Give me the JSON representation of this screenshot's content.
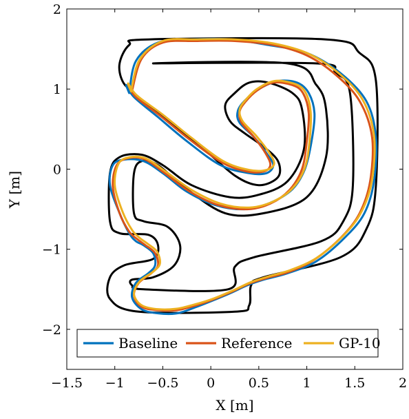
{
  "chart_data": {
    "type": "line",
    "title": "",
    "xlabel": "X [m]",
    "ylabel": "Y [m]",
    "xlim": [
      -1.5,
      2
    ],
    "ylim": [
      -2.5,
      2
    ],
    "x_ticks": [
      -1.5,
      -1,
      -0.5,
      0,
      0.5,
      1,
      1.5,
      2
    ],
    "y_ticks": [
      -2,
      -1,
      0,
      1,
      2
    ],
    "x_tick_labels": [
      "−1.5",
      "−1",
      "−0.5",
      "0",
      "0.5",
      "1",
      "1.5",
      "2"
    ],
    "y_tick_labels": [
      "−2",
      "−1",
      "0",
      "1",
      "2"
    ],
    "grid": false,
    "legend_position": "bottom-center",
    "track": {
      "color": "#000000",
      "outer": [
        [
          -0.65,
          1.62
        ],
        [
          1.2,
          1.62
        ],
        [
          1.55,
          1.45
        ],
        [
          1.72,
          1.1
        ],
        [
          1.72,
          -0.2
        ],
        [
          1.62,
          -0.75
        ],
        [
          1.35,
          -1.1
        ],
        [
          0.55,
          -1.35
        ],
        [
          0.42,
          -1.45
        ],
        [
          0.4,
          -1.7
        ],
        [
          0.25,
          -1.78
        ],
        [
          -0.75,
          -1.78
        ],
        [
          -1.05,
          -1.62
        ],
        [
          -1.05,
          -1.35
        ],
        [
          -0.9,
          -1.2
        ],
        [
          -0.6,
          -1.12
        ],
        [
          -0.55,
          -0.95
        ],
        [
          -0.65,
          -0.82
        ],
        [
          -0.95,
          -0.8
        ],
        [
          -1.05,
          -0.65
        ],
        [
          -1.05,
          -0.05
        ],
        [
          -0.95,
          0.15
        ],
        [
          -0.72,
          0.18
        ],
        [
          -0.5,
          0.05
        ],
        [
          -0.2,
          -0.2
        ],
        [
          0.2,
          -0.35
        ],
        [
          0.5,
          -0.32
        ],
        [
          0.8,
          -0.15
        ],
        [
          0.97,
          0.25
        ],
        [
          0.95,
          0.75
        ],
        [
          0.85,
          0.95
        ],
        [
          0.6,
          1.08
        ],
        [
          0.4,
          1.08
        ],
        [
          0.25,
          0.95
        ],
        [
          0.15,
          0.8
        ],
        [
          0.2,
          0.6
        ],
        [
          0.35,
          0.45
        ],
        [
          0.55,
          0.28
        ],
        [
          0.7,
          0.1
        ],
        [
          0.7,
          -0.1
        ],
        [
          0.5,
          -0.2
        ],
        [
          0.25,
          -0.08
        ],
        [
          -0.1,
          0.28
        ],
        [
          -0.45,
          0.6
        ],
        [
          -0.8,
          0.95
        ],
        [
          -0.92,
          1.1
        ],
        [
          -0.95,
          1.32
        ],
        [
          -0.85,
          1.55
        ]
      ],
      "inner": [
        [
          -0.6,
          1.32
        ],
        [
          1.1,
          1.32
        ],
        [
          1.3,
          1.2
        ],
        [
          1.45,
          0.95
        ],
        [
          1.48,
          -0.2
        ],
        [
          1.38,
          -0.65
        ],
        [
          1.15,
          -0.9
        ],
        [
          0.45,
          -1.1
        ],
        [
          0.25,
          -1.22
        ],
        [
          0.18,
          -1.5
        ],
        [
          -0.7,
          -1.5
        ],
        [
          -0.82,
          -1.45
        ],
        [
          -0.82,
          -1.38
        ],
        [
          -0.6,
          -1.35
        ],
        [
          -0.38,
          -1.2
        ],
        [
          -0.32,
          -0.95
        ],
        [
          -0.45,
          -0.72
        ],
        [
          -0.7,
          -0.65
        ],
        [
          -0.8,
          -0.55
        ],
        [
          -0.8,
          -0.05
        ],
        [
          -0.72,
          0.1
        ],
        [
          -0.55,
          0.05
        ],
        [
          -0.25,
          -0.25
        ],
        [
          0.15,
          -0.55
        ],
        [
          0.55,
          -0.55
        ],
        [
          1.0,
          -0.35
        ],
        [
          1.2,
          0.15
        ],
        [
          1.2,
          0.75
        ],
        [
          1.1,
          1.05
        ],
        [
          0.8,
          1.32
        ]
      ]
    },
    "series": [
      {
        "name": "Baseline",
        "color": "#0072BD",
        "x": [
          -0.85,
          -0.78,
          -0.55,
          -0.2,
          0.2,
          0.6,
          1.0,
          1.35,
          1.62,
          1.72,
          1.7,
          1.6,
          1.4,
          1.1,
          0.8,
          0.55,
          0.38,
          0.2,
          0.0,
          -0.15,
          -0.35,
          -0.55,
          -0.72,
          -0.82,
          -0.78,
          -0.65,
          -0.58,
          -0.6,
          -0.7,
          -0.78,
          -0.85,
          -0.95,
          -1.05,
          -1.02,
          -0.9,
          -0.7,
          -0.5,
          -0.25,
          0.05,
          0.35,
          0.62,
          0.85,
          0.98,
          1.05,
          1.08,
          1.02,
          0.9,
          0.7,
          0.5,
          0.35,
          0.28,
          0.3,
          0.45,
          0.58,
          0.65,
          0.58,
          0.4,
          0.1,
          -0.25,
          -0.55,
          -0.8,
          -0.88,
          -0.85
        ],
        "y": [
          0.95,
          1.35,
          1.58,
          1.62,
          1.62,
          1.55,
          1.45,
          1.2,
          0.85,
          0.4,
          -0.15,
          -0.55,
          -0.85,
          -1.15,
          -1.3,
          -1.38,
          -1.45,
          -1.55,
          -1.65,
          -1.72,
          -1.8,
          -1.8,
          -1.75,
          -1.6,
          -1.42,
          -1.3,
          -1.2,
          -1.05,
          -0.95,
          -0.9,
          -0.8,
          -0.55,
          -0.2,
          0.05,
          0.12,
          0.1,
          -0.05,
          -0.28,
          -0.45,
          -0.5,
          -0.42,
          -0.25,
          0.0,
          0.35,
          0.7,
          0.95,
          1.08,
          1.1,
          1.0,
          0.85,
          0.72,
          0.58,
          0.4,
          0.2,
          0.05,
          -0.05,
          -0.05,
          0.05,
          0.35,
          0.65,
          0.9,
          1.05,
          0.95
        ]
      },
      {
        "name": "Reference",
        "color": "#D95319",
        "x": [
          -0.82,
          -0.72,
          -0.5,
          -0.15,
          0.25,
          0.65,
          1.0,
          1.3,
          1.55,
          1.68,
          1.66,
          1.55,
          1.36,
          1.08,
          0.82,
          0.58,
          0.4,
          0.22,
          0.02,
          -0.15,
          -0.35,
          -0.55,
          -0.72,
          -0.8,
          -0.75,
          -0.62,
          -0.55,
          -0.58,
          -0.68,
          -0.76,
          -0.85,
          -0.95,
          -1.02,
          -0.98,
          -0.85,
          -0.68,
          -0.48,
          -0.22,
          0.08,
          0.38,
          0.62,
          0.82,
          0.95,
          1.0,
          1.02,
          0.96,
          0.85,
          0.65,
          0.48,
          0.36,
          0.3,
          0.32,
          0.45,
          0.57,
          0.62,
          0.55,
          0.38,
          0.12,
          -0.22,
          -0.52,
          -0.78,
          -0.86,
          -0.82
        ],
        "y": [
          0.98,
          1.38,
          1.58,
          1.6,
          1.6,
          1.55,
          1.42,
          1.18,
          0.85,
          0.4,
          -0.15,
          -0.55,
          -0.85,
          -1.13,
          -1.28,
          -1.36,
          -1.43,
          -1.53,
          -1.63,
          -1.7,
          -1.76,
          -1.76,
          -1.72,
          -1.58,
          -1.42,
          -1.3,
          -1.2,
          -1.05,
          -0.95,
          -0.88,
          -0.78,
          -0.55,
          -0.22,
          0.05,
          0.14,
          0.12,
          -0.05,
          -0.28,
          -0.45,
          -0.5,
          -0.43,
          -0.26,
          0.0,
          0.35,
          0.7,
          0.95,
          1.05,
          1.08,
          0.98,
          0.84,
          0.72,
          0.58,
          0.4,
          0.2,
          0.05,
          -0.03,
          -0.03,
          0.08,
          0.37,
          0.66,
          0.9,
          1.05,
          0.98
        ]
      },
      {
        "name": "GP-10",
        "color": "#EDB120",
        "x": [
          -0.83,
          -0.74,
          -0.5,
          -0.15,
          0.25,
          0.65,
          1.02,
          1.33,
          1.58,
          1.7,
          1.68,
          1.57,
          1.38,
          1.1,
          0.83,
          0.6,
          0.42,
          0.24,
          0.04,
          -0.14,
          -0.34,
          -0.54,
          -0.72,
          -0.8,
          -0.74,
          -0.6,
          -0.53,
          -0.56,
          -0.66,
          -0.74,
          -0.82,
          -0.92,
          -1.0,
          -0.96,
          -0.84,
          -0.67,
          -0.47,
          -0.2,
          0.1,
          0.4,
          0.64,
          0.85,
          0.98,
          1.03,
          1.04,
          0.98,
          0.86,
          0.66,
          0.48,
          0.36,
          0.3,
          0.33,
          0.47,
          0.6,
          0.66,
          0.58,
          0.4,
          0.13,
          -0.2,
          -0.5,
          -0.77,
          -0.86,
          -0.83
        ],
        "y": [
          0.97,
          1.37,
          1.6,
          1.62,
          1.62,
          1.57,
          1.44,
          1.2,
          0.87,
          0.42,
          -0.13,
          -0.53,
          -0.83,
          -1.11,
          -1.26,
          -1.34,
          -1.41,
          -1.51,
          -1.61,
          -1.68,
          -1.74,
          -1.75,
          -1.7,
          -1.56,
          -1.4,
          -1.28,
          -1.18,
          -1.03,
          -0.93,
          -0.86,
          -0.76,
          -0.53,
          -0.2,
          0.07,
          0.15,
          0.13,
          -0.03,
          -0.26,
          -0.43,
          -0.48,
          -0.41,
          -0.24,
          0.02,
          0.37,
          0.72,
          0.97,
          1.07,
          1.1,
          1.0,
          0.86,
          0.74,
          0.6,
          0.42,
          0.22,
          0.07,
          -0.01,
          -0.01,
          0.1,
          0.39,
          0.68,
          0.92,
          1.07,
          0.97
        ]
      }
    ]
  }
}
